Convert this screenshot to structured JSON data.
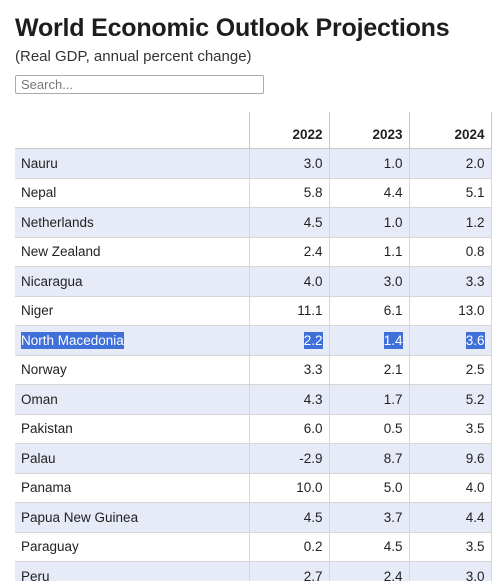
{
  "title": "World Economic Outlook Projections",
  "subtitle": "(Real GDP, annual percent change)",
  "search": {
    "placeholder": "Search...",
    "value": ""
  },
  "table": {
    "headers": [
      "",
      "2022",
      "2023",
      "2024"
    ],
    "rows": [
      {
        "country": "Nauru",
        "y2022": "3.0",
        "y2023": "1.0",
        "y2024": "2.0"
      },
      {
        "country": "Nepal",
        "y2022": "5.8",
        "y2023": "4.4",
        "y2024": "5.1"
      },
      {
        "country": "Netherlands",
        "y2022": "4.5",
        "y2023": "1.0",
        "y2024": "1.2"
      },
      {
        "country": "New Zealand",
        "y2022": "2.4",
        "y2023": "1.1",
        "y2024": "0.8"
      },
      {
        "country": "Nicaragua",
        "y2022": "4.0",
        "y2023": "3.0",
        "y2024": "3.3"
      },
      {
        "country": "Niger",
        "y2022": "11.1",
        "y2023": "6.1",
        "y2024": "13.0"
      },
      {
        "country": "North Macedonia",
        "y2022": "2.2",
        "y2023": "1.4",
        "y2024": "3.6",
        "selected": true
      },
      {
        "country": "Norway",
        "y2022": "3.3",
        "y2023": "2.1",
        "y2024": "2.5"
      },
      {
        "country": "Oman",
        "y2022": "4.3",
        "y2023": "1.7",
        "y2024": "5.2"
      },
      {
        "country": "Pakistan",
        "y2022": "6.0",
        "y2023": "0.5",
        "y2024": "3.5"
      },
      {
        "country": "Palau",
        "y2022": "-2.9",
        "y2023": "8.7",
        "y2024": "9.6"
      },
      {
        "country": "Panama",
        "y2022": "10.0",
        "y2023": "5.0",
        "y2024": "4.0"
      },
      {
        "country": "Papua New Guinea",
        "y2022": "4.5",
        "y2023": "3.7",
        "y2024": "4.4"
      },
      {
        "country": "Paraguay",
        "y2022": "0.2",
        "y2023": "4.5",
        "y2024": "3.5"
      },
      {
        "country": "Peru",
        "y2022": "2.7",
        "y2023": "2.4",
        "y2024": "3.0"
      }
    ]
  },
  "colors": {
    "stripe": "#e6ebf7",
    "selection": "#3f6fd8"
  }
}
